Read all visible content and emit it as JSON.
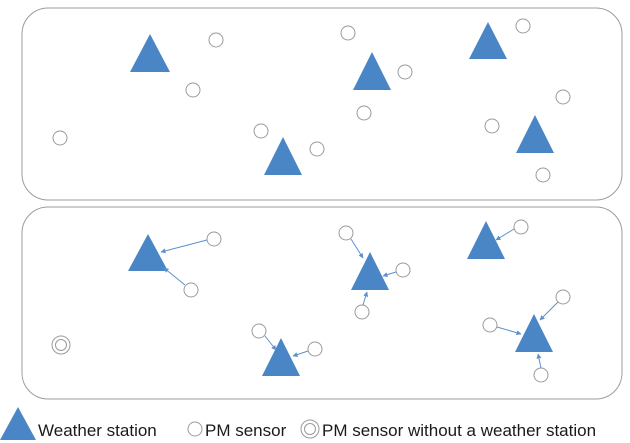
{
  "colors": {
    "triangle": "#4a86c6",
    "circle_stroke": "#9a9a9a",
    "arrow": "#5b8fd0",
    "panel_stroke": "#9c9c9c"
  },
  "legend": {
    "weather_station": "Weather station",
    "pm_sensor": "PM sensor",
    "pm_sensor_no_station": "PM sensor without a weather station"
  }
}
